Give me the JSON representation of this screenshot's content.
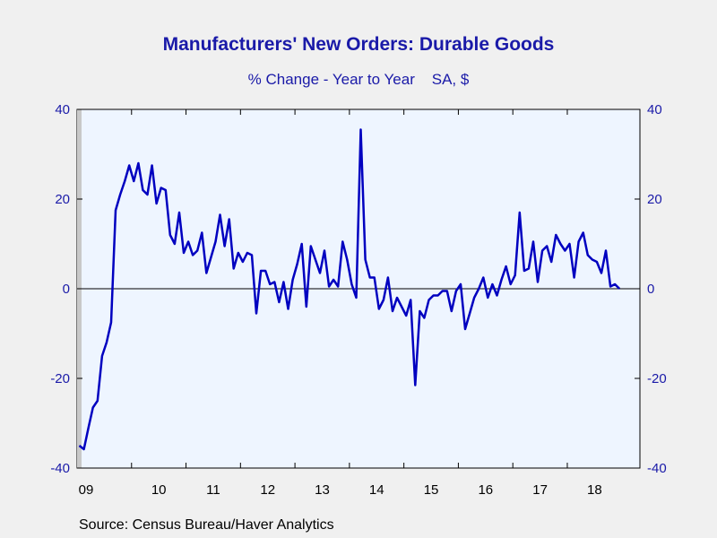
{
  "chart_data": {
    "type": "line",
    "title": "Manufacturers' New Orders: Durable Goods",
    "subtitle": "% Change - Year to Year    SA, $",
    "source": "Source:  Census Bureau/Haver Analytics",
    "y_ticks": [
      "40",
      "20",
      "0",
      "-20",
      "-40"
    ],
    "ylim": [
      -40,
      40
    ],
    "x_ticks": [
      "09",
      "10",
      "11",
      "12",
      "13",
      "14",
      "15",
      "16",
      "17",
      "18"
    ],
    "zero_line": true,
    "grid": false,
    "colors": {
      "line": "#0000c0",
      "plot_bg": "#eef5ff",
      "text": "#1a1aa8"
    },
    "series": [
      {
        "values": [
          -35,
          -35.8,
          -31,
          -26.5,
          -25,
          -15,
          -12,
          -7.5,
          17.5,
          21,
          24,
          27.5,
          24,
          28,
          22,
          21,
          27.5,
          19,
          22.5,
          22,
          12,
          10,
          17,
          8,
          10.5,
          7.5,
          8.5,
          12.5,
          3.5,
          7,
          10.5,
          16.5,
          9.5,
          15.5,
          4.5,
          8,
          6,
          8,
          7.5,
          -5.5,
          4,
          4,
          1,
          1.5,
          -3,
          1.5,
          -4.5,
          2,
          5.5,
          10,
          -4,
          9.5,
          6.5,
          3.5,
          8.5,
          0.5,
          2,
          0.5,
          10.5,
          6.5,
          1,
          -2,
          35.5,
          6.5,
          2.5,
          2.5,
          -4.5,
          -2.5,
          2.5,
          -5,
          -2,
          -4,
          -6,
          -2.5,
          -21.5,
          -5,
          -6.5,
          -2.5,
          -1.5,
          -1.5,
          -0.5,
          -0.5,
          -5,
          -0.5,
          1,
          -9,
          -5.5,
          -2,
          0,
          2.5,
          -2,
          1,
          -1.5,
          2,
          5,
          1,
          3,
          17,
          4,
          4.5,
          10.5,
          1.5,
          8.5,
          9.5,
          6,
          12,
          10,
          8.5,
          10,
          2.5,
          10.5,
          12.5,
          7.5,
          6.5,
          6,
          3.5,
          8.5,
          0.5,
          1,
          0
        ]
      }
    ]
  }
}
